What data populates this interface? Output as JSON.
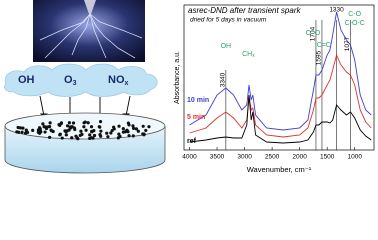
{
  "chart_data": {
    "type": "line",
    "title": "asrec-DND after transient spark",
    "subtitle": "dried for 5 days in vacuum",
    "x_label": "Wavenumber, cm⁻¹",
    "y_label": "Absorbance, a.u.",
    "x": [
      4000,
      3700,
      3500,
      3340,
      3200,
      3050,
      2960,
      2920,
      2880,
      2850,
      2800,
      2600,
      2300,
      2000,
      1850,
      1750,
      1704,
      1650,
      1595,
      1500,
      1450,
      1400,
      1330,
      1250,
      1150,
      1077,
      1000,
      900,
      800,
      700
    ],
    "series": [
      {
        "name": "10 min",
        "color": "#3f3fd0",
        "values": [
          25,
          35,
          55,
          62,
          55,
          40,
          45,
          65,
          50,
          55,
          35,
          22,
          20,
          22,
          30,
          60,
          75,
          75,
          80,
          95,
          100,
          115,
          138,
          120,
          110,
          105,
          90,
          55,
          40,
          35
        ]
      },
      {
        "name": "5 min",
        "color": "#e03030",
        "values": [
          17,
          22,
          32,
          38,
          32,
          22,
          30,
          55,
          40,
          42,
          25,
          15,
          13,
          15,
          22,
          40,
          52,
          52,
          55,
          65,
          70,
          80,
          95,
          85,
          78,
          75,
          65,
          40,
          28,
          22
        ]
      },
      {
        "name": "ref",
        "color": "#000000",
        "values": [
          8,
          10,
          12,
          13,
          12,
          12,
          25,
          55,
          30,
          38,
          15,
          8,
          7,
          8,
          10,
          18,
          25,
          25,
          28,
          28,
          27,
          30,
          45,
          40,
          35,
          38,
          32,
          20,
          14,
          10
        ]
      }
    ],
    "xlim": [
      4100,
      650
    ],
    "xticks": [
      4000,
      3500,
      3000,
      2500,
      2000,
      1500,
      1000
    ],
    "ylim": [
      0,
      145
    ],
    "peak_labels": [
      3340,
      1704,
      1595,
      1330,
      1077
    ],
    "group_labels": [
      "OH",
      "CH",
      "x",
      "C=O",
      "C=C",
      "C-O",
      "C-O-C"
    ],
    "group_color": "#2aa36b"
  },
  "schematic": {
    "labels": [
      "OH",
      "O",
      "3",
      "NO",
      "x"
    ]
  }
}
